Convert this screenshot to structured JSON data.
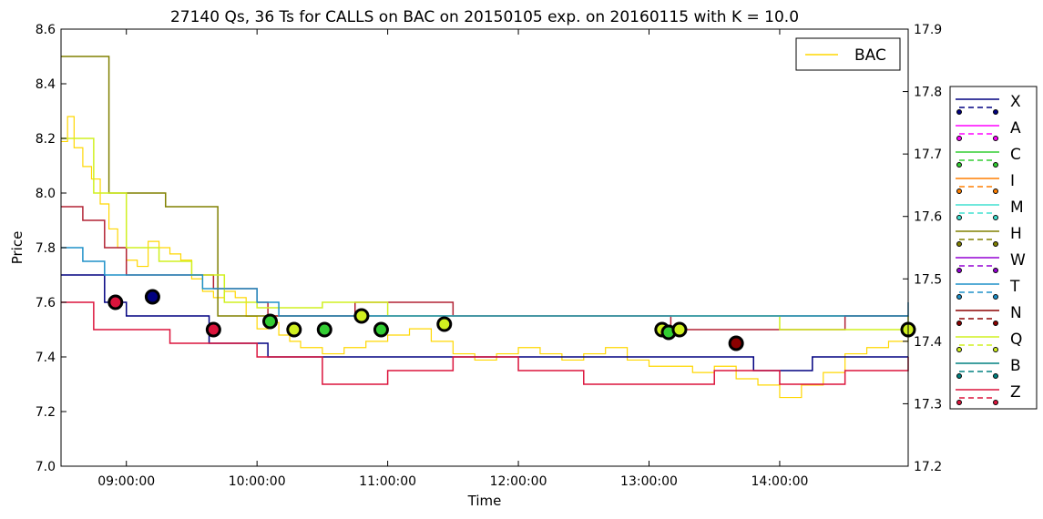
{
  "chart_data": {
    "type": "line",
    "title": "27140 Qs, 36 Ts for CALLS on BAC on 20150105 exp. on 20160115 with K = 10.0",
    "xlabel": "Time",
    "ylabel": "Price",
    "x_range": [
      "08:30:00",
      "14:59:00"
    ],
    "ylim": [
      7.0,
      8.6
    ],
    "y2lim": [
      17.2,
      17.9
    ],
    "grid": false,
    "x_ticks": [
      "09:00:00",
      "10:00:00",
      "11:00:00",
      "12:00:00",
      "13:00:00",
      "14:00:00"
    ],
    "y_ticks": [
      "7.0",
      "7.2",
      "7.4",
      "7.6",
      "7.8",
      "8.0",
      "8.2",
      "8.4",
      "8.6"
    ],
    "y2_ticks": [
      "17.2",
      "17.3",
      "17.4",
      "17.5",
      "17.6",
      "17.7",
      "17.8",
      "17.9"
    ],
    "inner_legend": {
      "placement": "top-right",
      "label": "BAC",
      "color": "#ffd700"
    },
    "exchange_legend": {
      "placement": "outside-right",
      "entries": [
        {
          "label": "X",
          "color": "#000080"
        },
        {
          "label": "A",
          "color": "#ff00ff"
        },
        {
          "label": "C",
          "color": "#32cd32"
        },
        {
          "label": "I",
          "color": "#ff7f00"
        },
        {
          "label": "M",
          "color": "#40e0d0"
        },
        {
          "label": "H",
          "color": "#808000"
        },
        {
          "label": "W",
          "color": "#9400d3"
        },
        {
          "label": "T",
          "color": "#1e90c8"
        },
        {
          "label": "N",
          "color": "#8b0000"
        },
        {
          "label": "Q",
          "color": "#d0f020"
        },
        {
          "label": "B",
          "color": "#008080"
        },
        {
          "label": "Z",
          "color": "#dc143c"
        }
      ]
    },
    "series": [
      {
        "name": "BAC",
        "axis": "right",
        "color": "#ffd700",
        "points": [
          [
            "08:30",
            17.72
          ],
          [
            "08:33",
            17.76
          ],
          [
            "08:36",
            17.71
          ],
          [
            "08:40",
            17.68
          ],
          [
            "08:44",
            17.66
          ],
          [
            "08:48",
            17.62
          ],
          [
            "08:52",
            17.58
          ],
          [
            "08:56",
            17.55
          ],
          [
            "09:00",
            17.53
          ],
          [
            "09:05",
            17.52
          ],
          [
            "09:10",
            17.56
          ],
          [
            "09:15",
            17.55
          ],
          [
            "09:20",
            17.54
          ],
          [
            "09:25",
            17.53
          ],
          [
            "09:30",
            17.5
          ],
          [
            "09:35",
            17.48
          ],
          [
            "09:40",
            17.47
          ],
          [
            "09:45",
            17.48
          ],
          [
            "09:50",
            17.47
          ],
          [
            "09:55",
            17.44
          ],
          [
            "10:00",
            17.42
          ],
          [
            "10:05",
            17.43
          ],
          [
            "10:10",
            17.41
          ],
          [
            "10:15",
            17.4
          ],
          [
            "10:20",
            17.39
          ],
          [
            "10:30",
            17.38
          ],
          [
            "10:40",
            17.39
          ],
          [
            "10:50",
            17.4
          ],
          [
            "11:00",
            17.41
          ],
          [
            "11:10",
            17.42
          ],
          [
            "11:20",
            17.4
          ],
          [
            "11:30",
            17.38
          ],
          [
            "11:40",
            17.37
          ],
          [
            "11:50",
            17.38
          ],
          [
            "12:00",
            17.39
          ],
          [
            "12:10",
            17.38
          ],
          [
            "12:20",
            17.37
          ],
          [
            "12:30",
            17.38
          ],
          [
            "12:40",
            17.39
          ],
          [
            "12:50",
            17.37
          ],
          [
            "13:00",
            17.36
          ],
          [
            "13:10",
            17.36
          ],
          [
            "13:20",
            17.35
          ],
          [
            "13:30",
            17.36
          ],
          [
            "13:40",
            17.34
          ],
          [
            "13:50",
            17.33
          ],
          [
            "14:00",
            17.31
          ],
          [
            "14:10",
            17.33
          ],
          [
            "14:20",
            17.35
          ],
          [
            "14:30",
            17.38
          ],
          [
            "14:40",
            17.39
          ],
          [
            "14:50",
            17.4
          ],
          [
            "14:59",
            17.43
          ]
        ]
      },
      {
        "name": "H ask",
        "axis": "left",
        "color": "#808000",
        "points": [
          [
            "08:30",
            8.5
          ],
          [
            "08:40",
            8.5
          ],
          [
            "08:50",
            8.5
          ],
          [
            "08:52",
            8.0
          ],
          [
            "09:15",
            8.0
          ],
          [
            "09:18",
            7.95
          ],
          [
            "09:35",
            7.95
          ],
          [
            "09:42",
            7.55
          ],
          [
            "10:20",
            7.55
          ],
          [
            "11:00",
            7.55
          ],
          [
            "12:00",
            7.55
          ],
          [
            "13:00",
            7.55
          ],
          [
            "14:00",
            7.55
          ],
          [
            "14:59",
            7.55
          ]
        ]
      },
      {
        "name": "N ask",
        "axis": "left",
        "color": "#b22234",
        "points": [
          [
            "08:30",
            7.95
          ],
          [
            "08:40",
            7.9
          ],
          [
            "08:50",
            7.8
          ],
          [
            "09:00",
            7.7
          ],
          [
            "09:30",
            7.7
          ],
          [
            "09:40",
            7.65
          ],
          [
            "10:00",
            7.6
          ],
          [
            "10:05",
            7.55
          ],
          [
            "10:45",
            7.6
          ],
          [
            "11:20",
            7.6
          ],
          [
            "11:30",
            7.55
          ],
          [
            "12:00",
            7.55
          ],
          [
            "13:00",
            7.55
          ],
          [
            "13:10",
            7.5
          ],
          [
            "14:00",
            7.5
          ],
          [
            "14:25",
            7.5
          ],
          [
            "14:30",
            7.55
          ],
          [
            "14:59",
            7.55
          ]
        ]
      },
      {
        "name": "X bid",
        "axis": "left",
        "color": "#000080",
        "points": [
          [
            "08:30",
            7.7
          ],
          [
            "08:50",
            7.6
          ],
          [
            "09:00",
            7.55
          ],
          [
            "09:30",
            7.55
          ],
          [
            "09:38",
            7.45
          ],
          [
            "10:00",
            7.45
          ],
          [
            "10:05",
            7.4
          ],
          [
            "12:00",
            7.4
          ],
          [
            "13:00",
            7.4
          ],
          [
            "13:45",
            7.4
          ],
          [
            "13:48",
            7.35
          ],
          [
            "14:10",
            7.35
          ],
          [
            "14:15",
            7.4
          ],
          [
            "14:59",
            7.4
          ]
        ]
      },
      {
        "name": "Q ask",
        "axis": "left",
        "color": "#d0f020",
        "points": [
          [
            "08:30",
            8.2
          ],
          [
            "08:45",
            8.0
          ],
          [
            "09:00",
            7.8
          ],
          [
            "09:15",
            7.75
          ],
          [
            "09:30",
            7.7
          ],
          [
            "09:45",
            7.6
          ],
          [
            "10:00",
            7.58
          ],
          [
            "10:30",
            7.6
          ],
          [
            "11:00",
            7.55
          ],
          [
            "12:00",
            7.55
          ],
          [
            "13:00",
            7.55
          ],
          [
            "14:00",
            7.5
          ],
          [
            "14:59",
            7.55
          ]
        ]
      },
      {
        "name": "T ask",
        "axis": "left",
        "color": "#1e90c8",
        "points": [
          [
            "08:30",
            7.8
          ],
          [
            "08:40",
            7.75
          ],
          [
            "08:50",
            7.7
          ],
          [
            "09:10",
            7.7
          ],
          [
            "09:35",
            7.65
          ],
          [
            "10:00",
            7.6
          ],
          [
            "10:10",
            7.55
          ],
          [
            "11:00",
            7.55
          ],
          [
            "12:00",
            7.55
          ],
          [
            "13:00",
            7.55
          ],
          [
            "14:59",
            7.6
          ]
        ]
      },
      {
        "name": "Z bid",
        "axis": "left",
        "color": "#dc143c",
        "points": [
          [
            "08:30",
            7.6
          ],
          [
            "08:45",
            7.5
          ],
          [
            "09:00",
            7.5
          ],
          [
            "09:20",
            7.45
          ],
          [
            "09:45",
            7.45
          ],
          [
            "10:00",
            7.4
          ],
          [
            "10:30",
            7.3
          ],
          [
            "11:00",
            7.35
          ],
          [
            "11:30",
            7.4
          ],
          [
            "12:00",
            7.35
          ],
          [
            "12:30",
            7.3
          ],
          [
            "13:00",
            7.3
          ],
          [
            "13:30",
            7.35
          ],
          [
            "14:00",
            7.3
          ],
          [
            "14:30",
            7.35
          ],
          [
            "14:59",
            7.4
          ]
        ]
      }
    ],
    "trades": [
      {
        "t": "08:55",
        "y": 7.6,
        "color": "#dc143c"
      },
      {
        "t": "09:12",
        "y": 7.62,
        "color": "#000080"
      },
      {
        "t": "09:40",
        "y": 7.5,
        "color": "#dc143c"
      },
      {
        "t": "10:06",
        "y": 7.53,
        "color": "#32cd32"
      },
      {
        "t": "10:17",
        "y": 7.5,
        "color": "#d0f020"
      },
      {
        "t": "10:31",
        "y": 7.5,
        "color": "#32cd32"
      },
      {
        "t": "10:48",
        "y": 7.55,
        "color": "#d0f020"
      },
      {
        "t": "10:57",
        "y": 7.5,
        "color": "#32cd32"
      },
      {
        "t": "11:26",
        "y": 7.52,
        "color": "#d0f020"
      },
      {
        "t": "13:06",
        "y": 7.5,
        "color": "#d0f020"
      },
      {
        "t": "13:09",
        "y": 7.49,
        "color": "#32cd32"
      },
      {
        "t": "13:14",
        "y": 7.5,
        "color": "#d0f020"
      },
      {
        "t": "13:40",
        "y": 7.45,
        "color": "#8b0000"
      },
      {
        "t": "14:59",
        "y": 7.5,
        "color": "#d0f020"
      }
    ]
  }
}
